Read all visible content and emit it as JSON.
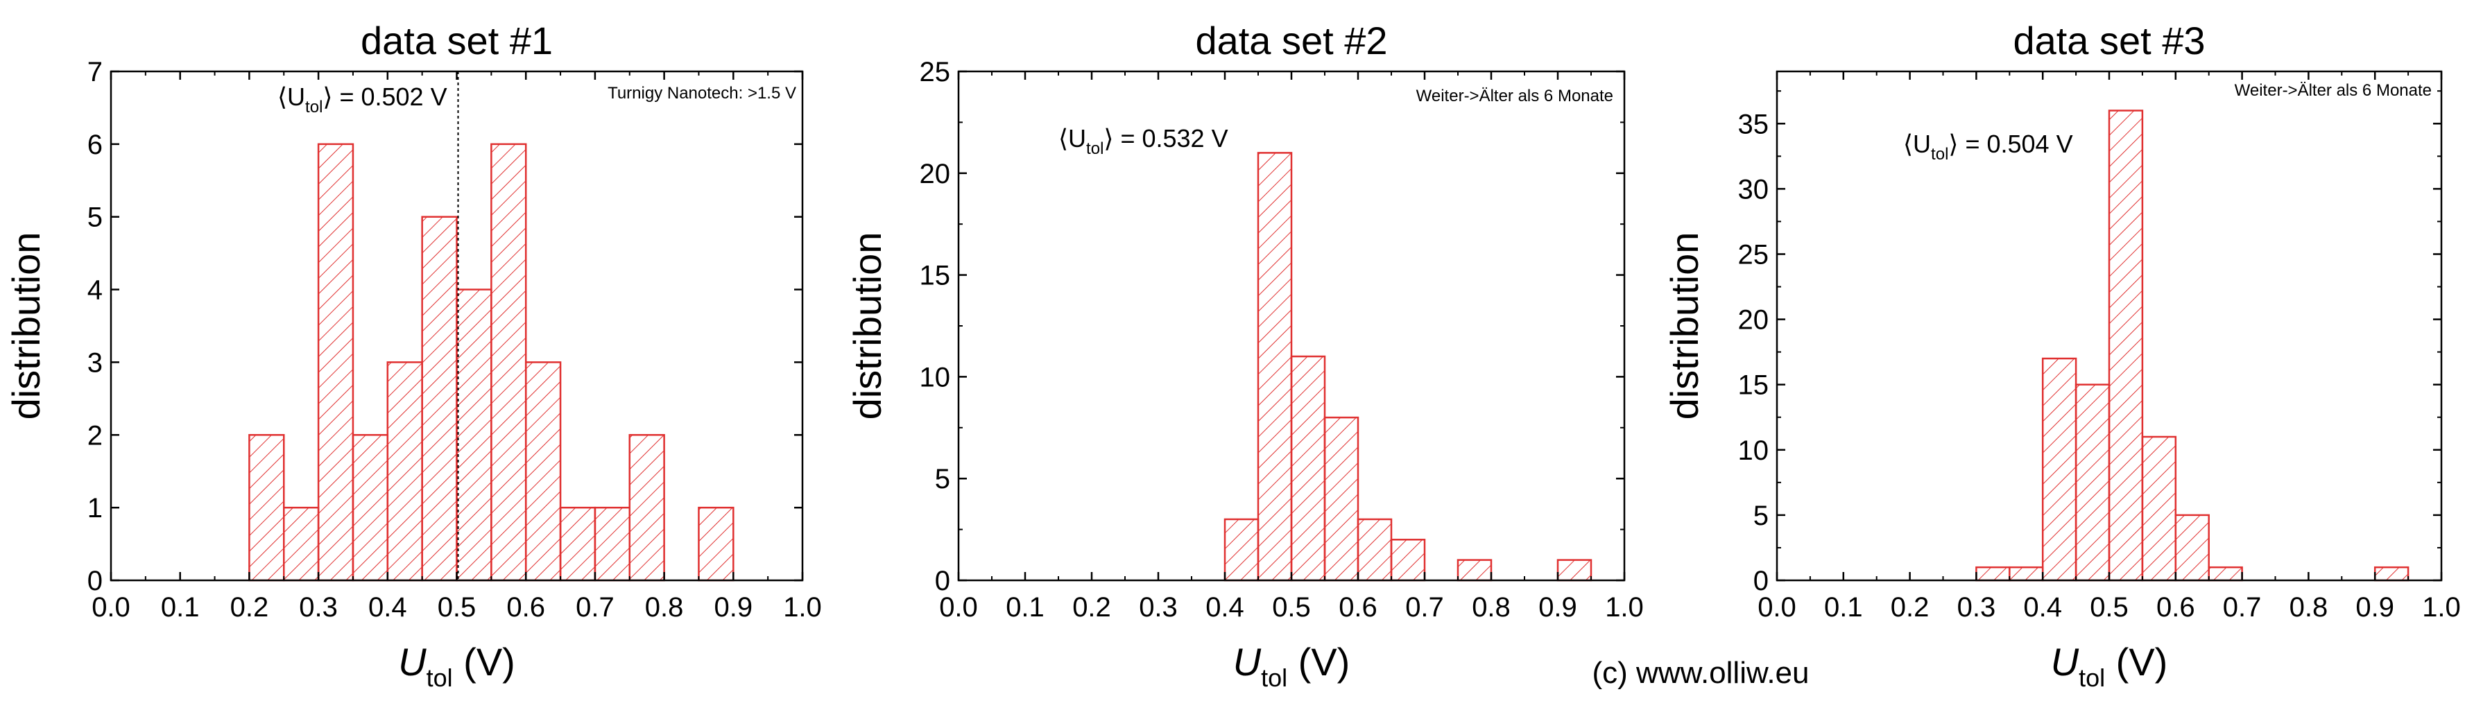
{
  "chart_data": [
    {
      "type": "bar",
      "title": "data set #1",
      "xlabel_main": "U",
      "xlabel_sub": "tol",
      "xlabel_unit": " (V)",
      "ylabel": "distribution",
      "xlim": [
        0.0,
        1.0
      ],
      "ylim": [
        0,
        7
      ],
      "xticks": [
        "0.0",
        "0.1",
        "0.2",
        "0.3",
        "0.4",
        "0.5",
        "0.6",
        "0.7",
        "0.8",
        "0.9",
        "1.0"
      ],
      "yticks": [
        "0",
        "1",
        "2",
        "3",
        "4",
        "5",
        "6",
        "7"
      ],
      "ytick_values": [
        0,
        1,
        2,
        3,
        4,
        5,
        6,
        7
      ],
      "bin_width": 0.05,
      "bins": [
        0.2,
        0.25,
        0.3,
        0.35,
        0.4,
        0.45,
        0.5,
        0.55,
        0.6,
        0.65,
        0.7,
        0.75,
        0.85
      ],
      "values": [
        2,
        1,
        6,
        2,
        3,
        5,
        4,
        6,
        3,
        1,
        1,
        2,
        1
      ],
      "mean_value": 0.502,
      "mean_label_pre": "⟨U",
      "mean_label_sub": "tol",
      "mean_label_post": "⟩ = 0.502 V",
      "show_mean_line": true,
      "note": "Turnigy Nanotech: >1.5 V",
      "bar_color": "#e03030"
    },
    {
      "type": "bar",
      "title": "data set #2",
      "xlabel_main": "U",
      "xlabel_sub": "tol",
      "xlabel_unit": " (V)",
      "ylabel": "distribution",
      "xlim": [
        0.0,
        1.0
      ],
      "ylim": [
        0,
        25
      ],
      "xticks": [
        "0.0",
        "0.1",
        "0.2",
        "0.3",
        "0.4",
        "0.5",
        "0.6",
        "0.7",
        "0.8",
        "0.9",
        "1.0"
      ],
      "yticks": [
        "0",
        "5",
        "10",
        "15",
        "20",
        "25"
      ],
      "ytick_values": [
        0,
        5,
        10,
        15,
        20,
        25
      ],
      "bin_width": 0.05,
      "bins": [
        0.4,
        0.45,
        0.5,
        0.55,
        0.6,
        0.65,
        0.75,
        0.9
      ],
      "values": [
        3,
        21,
        11,
        8,
        3,
        2,
        1,
        1
      ],
      "mean_value": 0.532,
      "mean_label_pre": "⟨U",
      "mean_label_sub": "tol",
      "mean_label_post": "⟩ = 0.532 V",
      "show_mean_line": false,
      "note": "Weiter->Älter als 6 Monate",
      "bar_color": "#e03030"
    },
    {
      "type": "bar",
      "title": "data set #3",
      "xlabel_main": "U",
      "xlabel_sub": "tol",
      "xlabel_unit": " (V)",
      "ylabel": "distribution",
      "xlim": [
        0.0,
        1.0
      ],
      "ylim": [
        0,
        39
      ],
      "xticks": [
        "0.0",
        "0.1",
        "0.2",
        "0.3",
        "0.4",
        "0.5",
        "0.6",
        "0.7",
        "0.8",
        "0.9",
        "1.0"
      ],
      "yticks": [
        "0",
        "5",
        "10",
        "15",
        "20",
        "25",
        "30",
        "35"
      ],
      "ytick_values": [
        0,
        5,
        10,
        15,
        20,
        25,
        30,
        35
      ],
      "bin_width": 0.05,
      "bins": [
        0.3,
        0.35,
        0.4,
        0.45,
        0.5,
        0.55,
        0.6,
        0.65,
        0.9
      ],
      "values": [
        1,
        1,
        17,
        15,
        36,
        11,
        5,
        1,
        1
      ],
      "mean_value": 0.504,
      "mean_label_pre": "⟨U",
      "mean_label_sub": "tol",
      "mean_label_post": "⟩ = 0.504 V",
      "show_mean_line": false,
      "note": "Weiter->Älter als 6 Monate",
      "bar_color": "#e03030"
    }
  ],
  "credit": "(c) www.olliw.eu"
}
